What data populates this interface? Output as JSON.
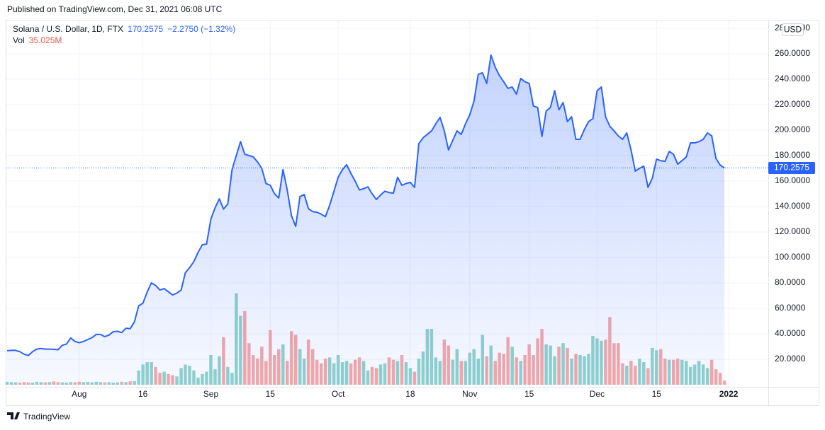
{
  "header": {
    "published": "Published on TradingView.com, Dec 31, 2021 06:08 UTC"
  },
  "footer": {
    "brand": "TradingView"
  },
  "chart_data": {
    "type": "area",
    "legend": "Solana / U.S. Dollar, 1D, FTX",
    "change": "−2.2750 (−1.32%)",
    "currency": "USD",
    "grid": true,
    "x": [
      "2021-07-15",
      "2021-07-16",
      "2021-07-17",
      "2021-07-18",
      "2021-07-19",
      "2021-07-20",
      "2021-07-21",
      "2021-07-22",
      "2021-07-23",
      "2021-07-24",
      "2021-07-25",
      "2021-07-26",
      "2021-07-27",
      "2021-07-28",
      "2021-07-29",
      "2021-07-30",
      "2021-07-31",
      "2021-08-01",
      "2021-08-02",
      "2021-08-03",
      "2021-08-04",
      "2021-08-05",
      "2021-08-06",
      "2021-08-07",
      "2021-08-08",
      "2021-08-09",
      "2021-08-10",
      "2021-08-11",
      "2021-08-12",
      "2021-08-13",
      "2021-08-14",
      "2021-08-15",
      "2021-08-16",
      "2021-08-17",
      "2021-08-18",
      "2021-08-19",
      "2021-08-20",
      "2021-08-21",
      "2021-08-22",
      "2021-08-23",
      "2021-08-24",
      "2021-08-25",
      "2021-08-26",
      "2021-08-27",
      "2021-08-28",
      "2021-08-29",
      "2021-08-30",
      "2021-08-31",
      "2021-09-01",
      "2021-09-02",
      "2021-09-03",
      "2021-09-04",
      "2021-09-05",
      "2021-09-06",
      "2021-09-07",
      "2021-09-08",
      "2021-09-09",
      "2021-09-10",
      "2021-09-11",
      "2021-09-12",
      "2021-09-13",
      "2021-09-14",
      "2021-09-15",
      "2021-09-16",
      "2021-09-17",
      "2021-09-18",
      "2021-09-19",
      "2021-09-20",
      "2021-09-21",
      "2021-09-22",
      "2021-09-23",
      "2021-09-24",
      "2021-09-25",
      "2021-09-26",
      "2021-09-27",
      "2021-09-28",
      "2021-09-29",
      "2021-09-30",
      "2021-10-01",
      "2021-10-02",
      "2021-10-03",
      "2021-10-04",
      "2021-10-05",
      "2021-10-06",
      "2021-10-07",
      "2021-10-08",
      "2021-10-09",
      "2021-10-10",
      "2021-10-11",
      "2021-10-12",
      "2021-10-13",
      "2021-10-14",
      "2021-10-15",
      "2021-10-16",
      "2021-10-17",
      "2021-10-18",
      "2021-10-19",
      "2021-10-20",
      "2021-10-21",
      "2021-10-22",
      "2021-10-23",
      "2021-10-24",
      "2021-10-25",
      "2021-10-26",
      "2021-10-27",
      "2021-10-28",
      "2021-10-29",
      "2021-10-30",
      "2021-10-31",
      "2021-11-01",
      "2021-11-02",
      "2021-11-03",
      "2021-11-04",
      "2021-11-05",
      "2021-11-06",
      "2021-11-07",
      "2021-11-08",
      "2021-11-09",
      "2021-11-10",
      "2021-11-11",
      "2021-11-12",
      "2021-11-13",
      "2021-11-14",
      "2021-11-15",
      "2021-11-16",
      "2021-11-17",
      "2021-11-18",
      "2021-11-19",
      "2021-11-20",
      "2021-11-21",
      "2021-11-22",
      "2021-11-23",
      "2021-11-24",
      "2021-11-25",
      "2021-11-26",
      "2021-11-27",
      "2021-11-28",
      "2021-11-29",
      "2021-11-30",
      "2021-12-01",
      "2021-12-02",
      "2021-12-03",
      "2021-12-04",
      "2021-12-05",
      "2021-12-06",
      "2021-12-07",
      "2021-12-08",
      "2021-12-09",
      "2021-12-10",
      "2021-12-11",
      "2021-12-12",
      "2021-12-13",
      "2021-12-14",
      "2021-12-15",
      "2021-12-16",
      "2021-12-17",
      "2021-12-18",
      "2021-12-19",
      "2021-12-20",
      "2021-12-21",
      "2021-12-22",
      "2021-12-23",
      "2021-12-24",
      "2021-12-25",
      "2021-12-26",
      "2021-12-27",
      "2021-12-28",
      "2021-12-29",
      "2021-12-30",
      "2021-12-31"
    ],
    "price": {
      "color": "#2962ff",
      "values": [
        26.7,
        27,
        27,
        26,
        24,
        23,
        26,
        28,
        28.5,
        28,
        28,
        27.8,
        27.5,
        31,
        32,
        36.7,
        34,
        33,
        34,
        35.5,
        37,
        39.5,
        39.5,
        37.8,
        39,
        41.7,
        42,
        41,
        44.4,
        44,
        49.4,
        62,
        64,
        72.8,
        80,
        78,
        74.4,
        75.5,
        73,
        70.5,
        72,
        74.4,
        88,
        92,
        96.7,
        104,
        110,
        110.5,
        130,
        139,
        146,
        138,
        142,
        169,
        180,
        191,
        181,
        180,
        179,
        175,
        170,
        158,
        156.7,
        150,
        146.7,
        169,
        153,
        132.8,
        124.4,
        147.8,
        149.4,
        138.3,
        136,
        135.5,
        134,
        132,
        141,
        152,
        163,
        169,
        172.8,
        166,
        160,
        153,
        154,
        155.5,
        150,
        145.5,
        149,
        152,
        151,
        150.5,
        163,
        156.7,
        158,
        159,
        155,
        189.4,
        194,
        196.7,
        199.4,
        205,
        210,
        199.4,
        184.4,
        192,
        199.4,
        196.7,
        205,
        212,
        222.8,
        243.9,
        245,
        236.7,
        258.9,
        249.4,
        242.8,
        238,
        232.8,
        233.9,
        228.3,
        240.6,
        238,
        236.7,
        218.9,
        217.8,
        195,
        215,
        217.8,
        231,
        216,
        221.7,
        206.7,
        210.5,
        192.8,
        192.8,
        200.5,
        206.7,
        209,
        231,
        233.9,
        210.5,
        203,
        199.4,
        195.5,
        192.8,
        197.8,
        184.4,
        167.8,
        170,
        171.7,
        155,
        162.2,
        177.2,
        176,
        175.5,
        183.3,
        181,
        173.3,
        176,
        178.9,
        190,
        190,
        191,
        192.8,
        197.8,
        195.5,
        177.8,
        172.53,
        170.2575
      ]
    },
    "volume": {
      "name": "Vol",
      "up_color": "#92d3cc",
      "down_color": "#f7a9a7",
      "vlim": [
        0,
        3000
      ],
      "last_label": "35.025M",
      "values": [
        25,
        22,
        20,
        18,
        22,
        20,
        18,
        25,
        22,
        20,
        22,
        28,
        22,
        20,
        18,
        22,
        20,
        25,
        22,
        24,
        20,
        25,
        22,
        20,
        22,
        18,
        20,
        25,
        22,
        28,
        30,
        120,
        170,
        190,
        190,
        150,
        100,
        110,
        90,
        80,
        70,
        140,
        170,
        160,
        120,
        60,
        90,
        110,
        250,
        130,
        240,
        400,
        150,
        100,
        770,
        580,
        620,
        350,
        250,
        220,
        320,
        200,
        460,
        250,
        300,
        340,
        200,
        450,
        420,
        300,
        220,
        380,
        300,
        210,
        180,
        220,
        230,
        180,
        250,
        190,
        200,
        180,
        210,
        230,
        200,
        120,
        150,
        140,
        170,
        180,
        230,
        210,
        200,
        250,
        190,
        140,
        110,
        220,
        280,
        470,
        470,
        230,
        200,
        380,
        330,
        210,
        300,
        200,
        200,
        270,
        300,
        220,
        420,
        240,
        330,
        200,
        270,
        260,
        400,
        320,
        230,
        200,
        250,
        340,
        250,
        390,
        470,
        340,
        330,
        240,
        320,
        350,
        310,
        220,
        260,
        250,
        240,
        260,
        410,
        390,
        370,
        380,
        570,
        350,
        350,
        180,
        160,
        200,
        160,
        220,
        190,
        140,
        310,
        290,
        300,
        220,
        210,
        210,
        220,
        210,
        200,
        150,
        170,
        200,
        170,
        140,
        210,
        130,
        100,
        35.025
      ]
    },
    "xlim": [
      "2021-07-15",
      "2022-01-10"
    ],
    "xticks": [
      {
        "value": "2021-08-01",
        "label": "Aug"
      },
      {
        "value": "2021-08-16",
        "label": "16"
      },
      {
        "value": "2021-09-01",
        "label": "Sep"
      },
      {
        "value": "2021-09-15",
        "label": "15"
      },
      {
        "value": "2021-10-01",
        "label": "Oct"
      },
      {
        "value": "2021-10-18",
        "label": "18"
      },
      {
        "value": "2021-11-01",
        "label": "Nov"
      },
      {
        "value": "2021-11-15",
        "label": "15"
      },
      {
        "value": "2021-12-01",
        "label": "Dec"
      },
      {
        "value": "2021-12-15",
        "label": "15"
      },
      {
        "value": "2022-01-01",
        "label": "2022"
      }
    ],
    "ylim": [
      0,
      280
    ],
    "yticks": [
      {
        "value": 20,
        "label": "20.0000"
      },
      {
        "value": 40,
        "label": "40.0000"
      },
      {
        "value": 60,
        "label": "60.0000"
      },
      {
        "value": 80,
        "label": "80.0000"
      },
      {
        "value": 100,
        "label": "100.0000"
      },
      {
        "value": 120,
        "label": "120.0000"
      },
      {
        "value": 140,
        "label": "140.0000"
      },
      {
        "value": 160,
        "label": "160.0000"
      },
      {
        "value": 180,
        "label": "180.0000"
      },
      {
        "value": 200,
        "label": "200.0000"
      },
      {
        "value": 220,
        "label": "220.0000"
      },
      {
        "value": 240,
        "label": "240.0000"
      },
      {
        "value": 260,
        "label": "260.0000"
      },
      {
        "value": 280,
        "label": "280.0000"
      }
    ]
  }
}
